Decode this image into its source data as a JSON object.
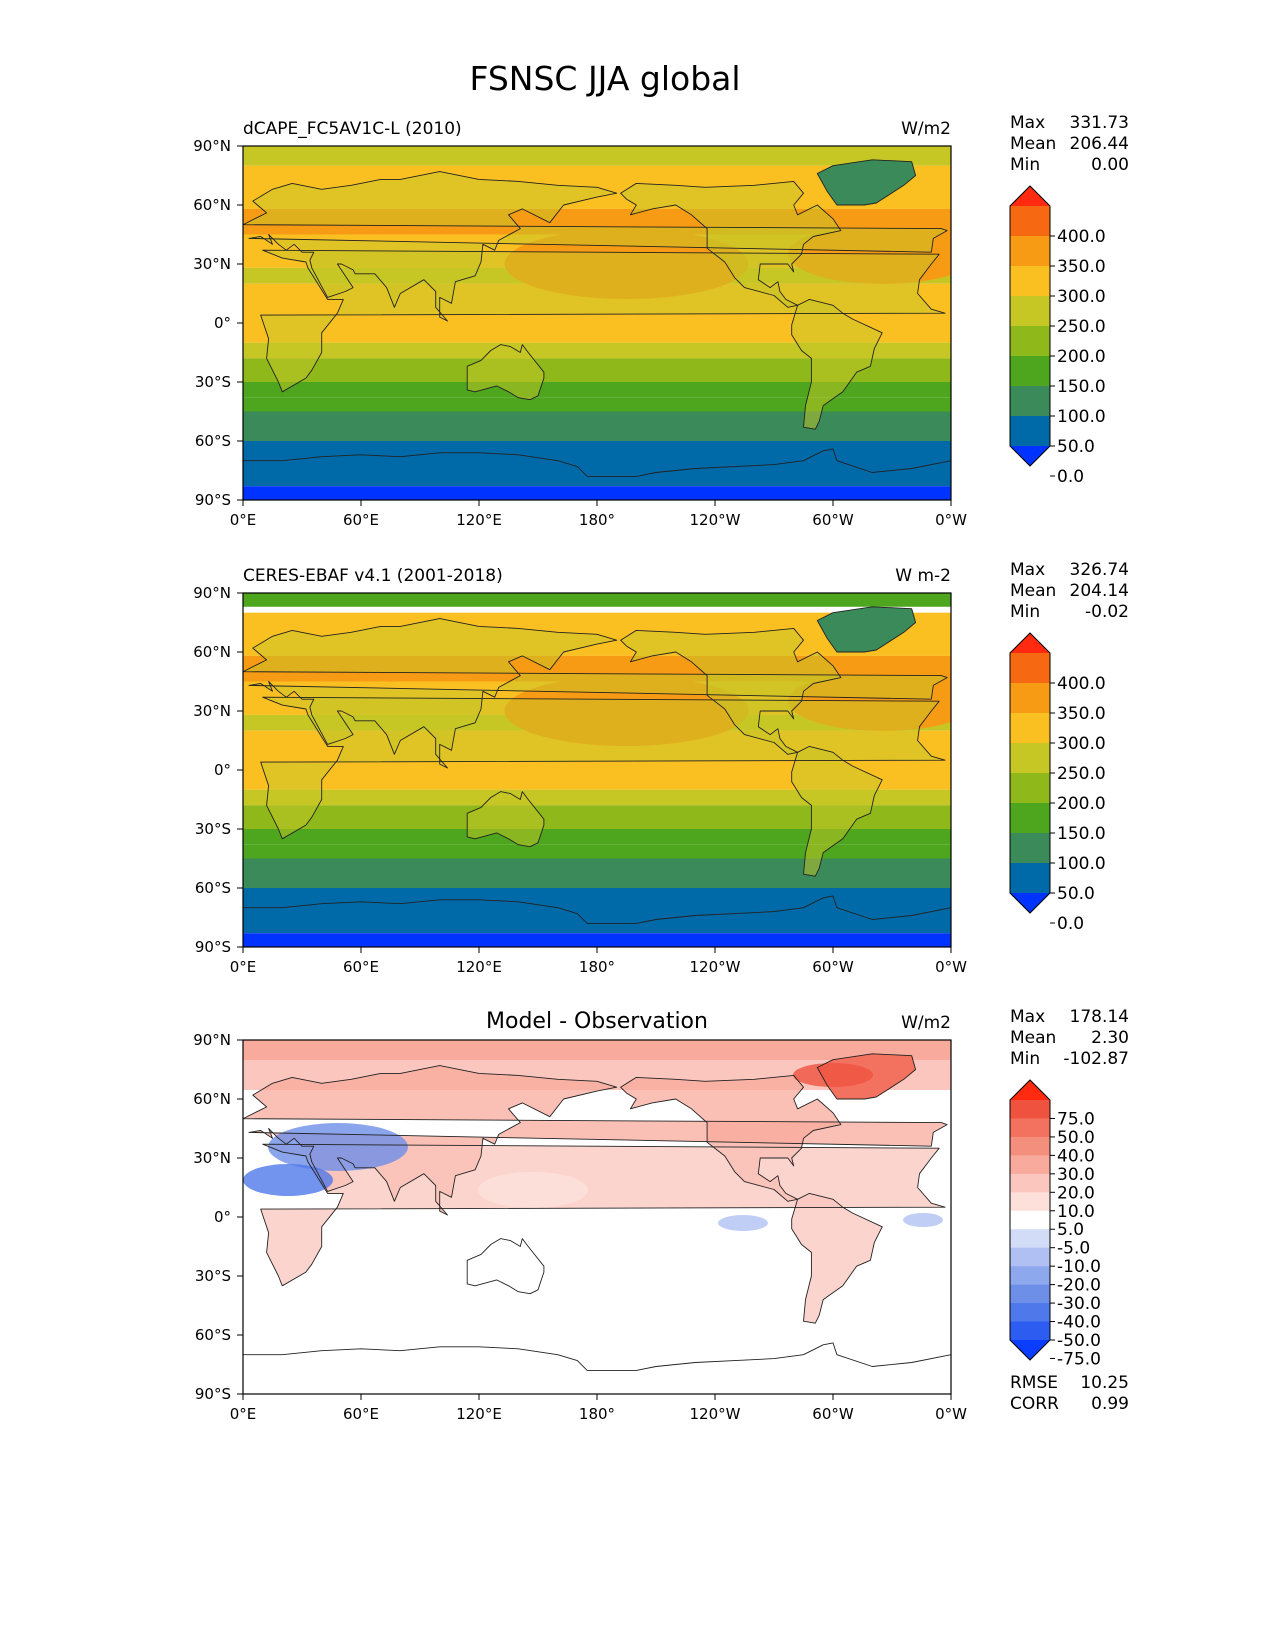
{
  "figure": {
    "title": "FSNSC JJA global"
  },
  "colors": {
    "land_outline": "#222222",
    "contour_levels": [
      "#0033ff",
      "#006aa8",
      "#3a8a5a",
      "#4ea61e",
      "#8fb91a",
      "#c6c625",
      "#fac022",
      "#f89b14",
      "#f76812",
      "#ff2a10"
    ],
    "diff_levels": [
      "#0a3dff",
      "#2c5cf0",
      "#4f78ea",
      "#6e8fe8",
      "#8ea8ee",
      "#b0c0f2",
      "#d2dcf7",
      "#ffffff",
      "#fde0da",
      "#fbc6bd",
      "#f8aa9c",
      "#f58f7d",
      "#f2725f",
      "#ef5340",
      "#ff2a10"
    ]
  },
  "panels": [
    {
      "title_left": "dCAPE_FC5AV1C-L (2010)",
      "title_center": "",
      "units": "W/m2",
      "stats": [
        [
          "Max",
          "331.73"
        ],
        [
          "Mean",
          "206.44"
        ],
        [
          "Min",
          "0.00"
        ]
      ],
      "colorbar_labels": [
        "400.0",
        "350.0",
        "300.0",
        "250.0",
        "200.0",
        "150.0",
        "100.0",
        "50.0",
        "0.0"
      ],
      "footer_stats": []
    },
    {
      "title_left": "CERES-EBAF v4.1 (2001-2018)",
      "title_center": "",
      "units": "W m-2",
      "stats": [
        [
          "Max",
          "326.74"
        ],
        [
          "Mean",
          "204.14"
        ],
        [
          "Min",
          "-0.02"
        ]
      ],
      "colorbar_labels": [
        "400.0",
        "350.0",
        "300.0",
        "250.0",
        "200.0",
        "150.0",
        "100.0",
        "50.0",
        "0.0"
      ],
      "footer_stats": []
    },
    {
      "title_left": "",
      "title_center": "Model - Observation",
      "units": "W/m2",
      "stats": [
        [
          "Max",
          "178.14"
        ],
        [
          "Mean",
          "2.30"
        ],
        [
          "Min",
          "-102.87"
        ]
      ],
      "colorbar_labels": [
        "75.0",
        "50.0",
        "40.0",
        "30.0",
        "20.0",
        "10.0",
        "5.0",
        "-5.0",
        "-10.0",
        "-20.0",
        "-30.0",
        "-40.0",
        "-50.0",
        "-75.0"
      ],
      "footer_stats": [
        [
          "RMSE",
          "10.25"
        ],
        [
          "CORR",
          "0.99"
        ]
      ]
    }
  ],
  "axes": {
    "lat_ticks": [
      "90°N",
      "60°N",
      "30°N",
      "0°",
      "30°S",
      "60°S",
      "90°S"
    ],
    "lon_ticks": [
      "0°E",
      "60°E",
      "120°E",
      "180°",
      "120°W",
      "60°W",
      "0°W"
    ]
  }
}
